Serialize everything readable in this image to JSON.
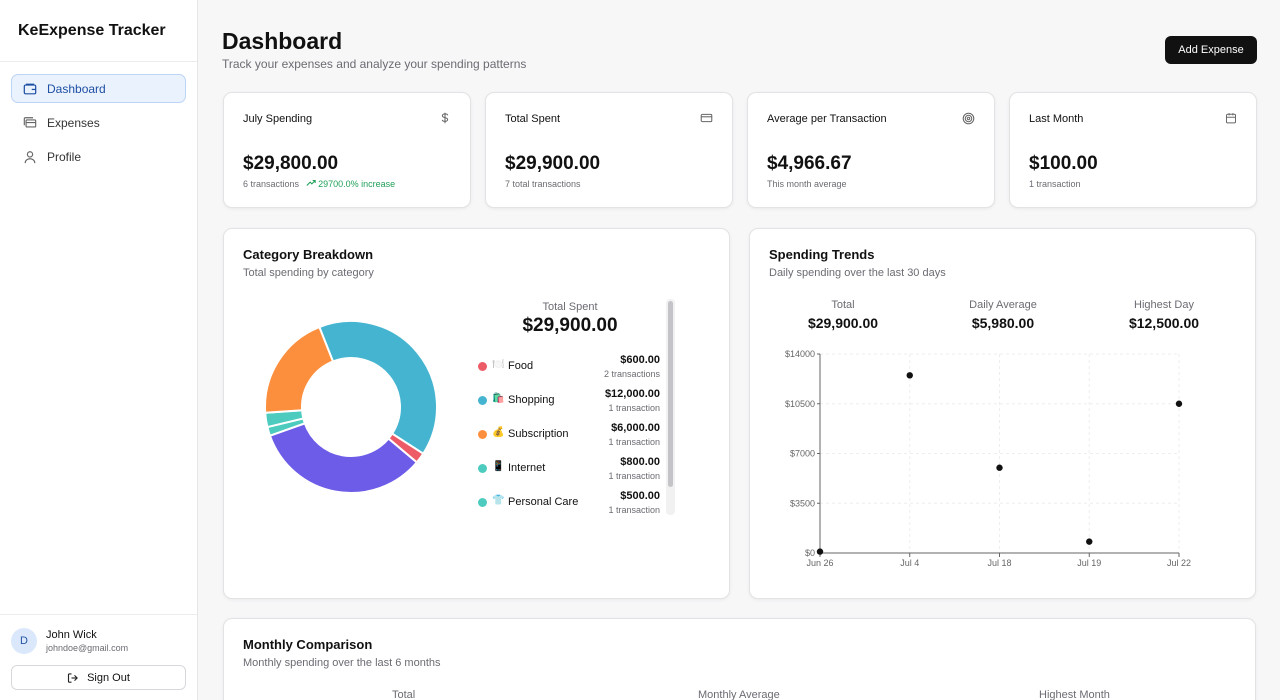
{
  "app": {
    "title": "KeExpense Tracker"
  },
  "sidebar": {
    "items": [
      {
        "label": "Dashboard",
        "icon": "wallet-icon",
        "active": true
      },
      {
        "label": "Expenses",
        "icon": "receipt-icon",
        "active": false
      },
      {
        "label": "Profile",
        "icon": "user-icon",
        "active": false
      }
    ],
    "user": {
      "initial": "D",
      "name": "John Wick",
      "email": "johndoe@gmail.com"
    },
    "signout_label": "Sign Out"
  },
  "header": {
    "title": "Dashboard",
    "subtitle": "Track your expenses and analyze your spending patterns",
    "add_button": "Add Expense"
  },
  "stats": [
    {
      "title": "July Spending",
      "icon": "dollar-icon",
      "value": "$29,800.00",
      "sub": "6 transactions",
      "increase": "29700.0% increase"
    },
    {
      "title": "Total Spent",
      "icon": "credit-card-icon",
      "value": "$29,900.00",
      "sub": "7 total transactions"
    },
    {
      "title": "Average per Transaction",
      "icon": "target-icon",
      "value": "$4,966.67",
      "sub": "This month average"
    },
    {
      "title": "Last Month",
      "icon": "calendar-icon",
      "value": "$100.00",
      "sub": "1 transaction"
    }
  ],
  "category": {
    "title": "Category Breakdown",
    "subtitle": "Total spending by category",
    "total_label": "Total Spent",
    "total_value": "$29,900.00",
    "items": [
      {
        "emoji": "🍽️",
        "name": "Food",
        "amount": "$600.00",
        "tx": "2 transactions",
        "color": "#ec5b66"
      },
      {
        "emoji": "🛍️",
        "name": "Shopping",
        "amount": "$12,000.00",
        "tx": "1 transaction",
        "color": "#44b4d0"
      },
      {
        "emoji": "💰",
        "name": "Subscription",
        "amount": "$6,000.00",
        "tx": "1 transaction",
        "color": "#fb8f3d"
      },
      {
        "emoji": "📱",
        "name": "Internet",
        "amount": "$800.00",
        "tx": "1 transaction",
        "color": "#4ecbbf"
      },
      {
        "emoji": "👕",
        "name": "Personal Care",
        "amount": "$500.00",
        "tx": "1 transaction",
        "color": "#4ecbbf"
      }
    ]
  },
  "trends": {
    "title": "Spending Trends",
    "subtitle": "Daily spending over the last 30 days",
    "stats": [
      {
        "label": "Total",
        "value": "$29,900.00"
      },
      {
        "label": "Daily Average",
        "value": "$5,980.00"
      },
      {
        "label": "Highest Day",
        "value": "$12,500.00"
      }
    ]
  },
  "monthly": {
    "title": "Monthly Comparison",
    "subtitle": "Monthly spending over the last 6 months",
    "stats": [
      "Total",
      "Monthly Average",
      "Highest Month"
    ]
  },
  "chart_data": [
    {
      "type": "pie",
      "title": "",
      "donut": true,
      "slices": [
        {
          "name": "Shopping",
          "value": 12000,
          "color": "#44b4d0"
        },
        {
          "name": "Food",
          "value": 600,
          "color": "#ec5b66"
        },
        {
          "name": "",
          "value": 10000,
          "color": "#6c5ce7"
        },
        {
          "name": "Personal Care",
          "value": 500,
          "color": "#4ecbbf"
        },
        {
          "name": "Internet",
          "value": 800,
          "color": "#4ecbbf"
        },
        {
          "name": "Subscription",
          "value": 6000,
          "color": "#fb8f3d"
        }
      ]
    },
    {
      "type": "scatter",
      "title": "",
      "xlabel": "",
      "ylabel": "",
      "categories": [
        "Jun 26",
        "Jul 4",
        "Jul 18",
        "Jul 19",
        "Jul 22"
      ],
      "values": [
        100,
        12500,
        6000,
        800,
        10500
      ],
      "yticks": [
        "$0",
        "$3500",
        "$7000",
        "$10500",
        "$14000"
      ],
      "ylim": [
        0,
        14000
      ],
      "grid": true
    }
  ]
}
